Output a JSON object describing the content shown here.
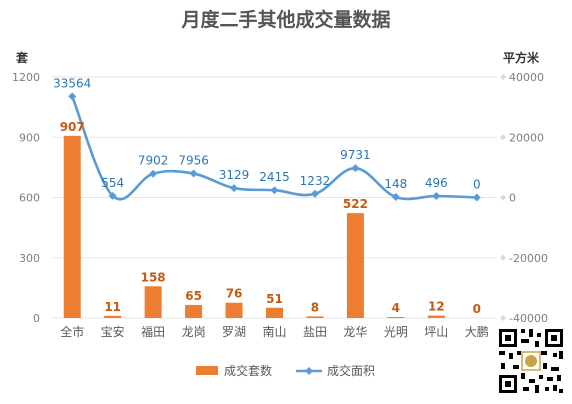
{
  "chart_data": {
    "type": "bar+line",
    "title": "月度二手其他成交量数据",
    "categories": [
      "全市",
      "宝安",
      "福田",
      "龙岗",
      "罗湖",
      "南山",
      "盐田",
      "龙华",
      "光明",
      "坪山",
      "大鹏"
    ],
    "series": [
      {
        "name": "成交套数",
        "type": "bar",
        "axis": "left",
        "values": [
          907,
          11,
          158,
          65,
          76,
          51,
          8,
          522,
          4,
          12,
          0
        ],
        "color": "#ed7d31"
      },
      {
        "name": "成交面积",
        "type": "line",
        "axis": "right",
        "values": [
          33564,
          554,
          7902,
          7956,
          3129,
          2415,
          1232,
          9731,
          148,
          496,
          0
        ],
        "color": "#5b9bd5"
      }
    ],
    "y_left": {
      "label": "套",
      "ylim": [
        0,
        1200
      ],
      "ticks": [
        0,
        300,
        600,
        900,
        1200
      ]
    },
    "y_right": {
      "label": "平方米",
      "ylim": [
        -40000,
        40000
      ],
      "ticks": [
        -40000,
        -20000,
        0,
        20000,
        40000
      ]
    },
    "grid": true,
    "legend_position": "bottom"
  }
}
